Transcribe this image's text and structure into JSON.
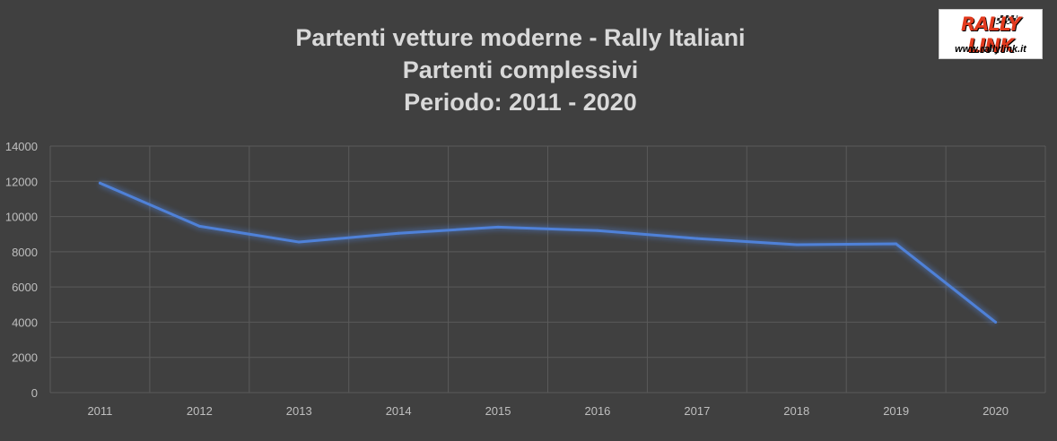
{
  "chart_data": {
    "type": "line",
    "title": [
      "Partenti vetture moderne - Rally Italiani",
      "Partenti complessivi",
      "Periodo: 2011 - 2020"
    ],
    "categories": [
      "2011",
      "2012",
      "2013",
      "2014",
      "2015",
      "2016",
      "2017",
      "2018",
      "2019",
      "2020"
    ],
    "series": [
      {
        "values": [
          11900,
          9450,
          8550,
          9050,
          9400,
          9200,
          8750,
          8400,
          8450,
          4000
        ]
      }
    ],
    "y_ticks": [
      "0",
      "2000",
      "4000",
      "6000",
      "8000",
      "10000",
      "12000",
      "14000"
    ],
    "ylim": [
      0,
      14000
    ],
    "xlabel": "",
    "ylabel": "",
    "grid": true,
    "legend": "none",
    "line_color": "#4f81d8"
  },
  "logo": {
    "name": "RALLY LINK",
    "url": "www.rallylink.it"
  }
}
